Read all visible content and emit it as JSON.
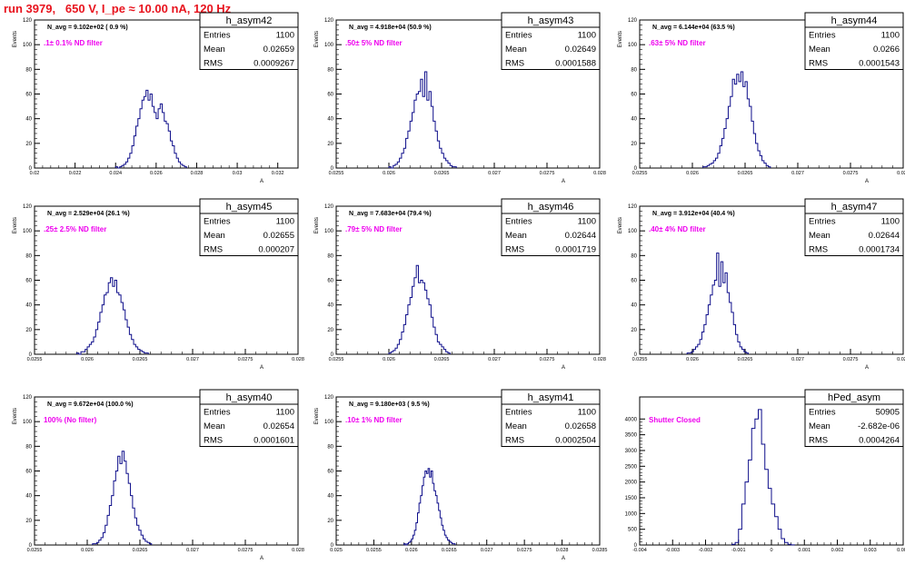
{
  "header": {
    "run_title": "run 3979,   650 V, I_pe ≈ 10.00 nA, 120 Hz"
  },
  "colors": {
    "title": "#e8141e",
    "hist": "#0d0d8a",
    "annotation": "#ee00ee",
    "axis": "#000000"
  },
  "chart_data": [
    {
      "type": "bar",
      "name": "h_asym42",
      "stats": {
        "Entries": "1100",
        "Mean": "0.02659",
        "RMS": "0.0009267"
      },
      "n_avg": "N_avg = 9.102e+02 ( 0.9 %)",
      "annotation": ".1± 0.1% ND filter",
      "ylabel": "Events",
      "xlabel": "A",
      "xlim": [
        0.02,
        0.033
      ],
      "ylim": [
        0,
        120
      ],
      "xticks": [
        0.02,
        0.022,
        0.024,
        0.026,
        0.028,
        0.03,
        0.032
      ],
      "xtick_labels": [
        "0.02",
        "0.022",
        "0.024",
        "0.026",
        "0.028",
        "0.03",
        "0.032"
      ],
      "yticks": [
        0,
        20,
        40,
        60,
        80,
        100,
        120
      ],
      "ytick_labels": [
        "0",
        "20",
        "40",
        "60",
        "80",
        "100",
        "120"
      ],
      "bins_start": 0.024,
      "bin_width": 0.0001,
      "values": [
        1,
        0,
        1,
        2,
        3,
        5,
        8,
        12,
        18,
        26,
        34,
        40,
        48,
        55,
        58,
        63,
        55,
        60,
        50,
        45,
        40,
        48,
        52,
        45,
        38,
        36,
        30,
        22,
        18,
        12,
        8,
        5,
        3,
        2,
        1
      ]
    },
    {
      "type": "bar",
      "name": "h_asym43",
      "stats": {
        "Entries": "1100",
        "Mean": "0.02649",
        "RMS": "0.0001588"
      },
      "n_avg": "N_avg = 4.918e+04 (50.9 %)",
      "annotation": ".50± 5% ND filter",
      "ylabel": "Events",
      "xlabel": "A",
      "xlim": [
        0.0255,
        0.028
      ],
      "ylim": [
        0,
        120
      ],
      "xticks": [
        0.0255,
        0.026,
        0.0265,
        0.027,
        0.0275,
        0.028
      ],
      "xtick_labels": [
        "0.0255",
        "0.026",
        "0.0265",
        "0.027",
        "0.0275",
        "0.028"
      ],
      "yticks": [
        0,
        20,
        40,
        60,
        80,
        100,
        120
      ],
      "ytick_labels": [
        "0",
        "20",
        "40",
        "60",
        "80",
        "100",
        "120"
      ],
      "bins_start": 0.026,
      "bin_width": 2e-05,
      "values": [
        1,
        0,
        2,
        3,
        5,
        8,
        12,
        16,
        24,
        30,
        38,
        45,
        55,
        60,
        62,
        72,
        58,
        78,
        55,
        62,
        50,
        38,
        30,
        22,
        16,
        12,
        8,
        6,
        4,
        2,
        1,
        1
      ]
    },
    {
      "type": "bar",
      "name": "h_asym44",
      "stats": {
        "Entries": "1100",
        "Mean": "0.0266",
        "RMS": "0.0001543"
      },
      "n_avg": "N_avg = 6.144e+04 (63.5 %)",
      "annotation": ".63± 5% ND filter",
      "ylabel": "Events",
      "xlabel": "A",
      "xlim": [
        0.0255,
        0.028
      ],
      "ylim": [
        0,
        120
      ],
      "xticks": [
        0.0255,
        0.026,
        0.0265,
        0.027,
        0.0275,
        0.028
      ],
      "xtick_labels": [
        "0.0255",
        "0.026",
        "0.0265",
        "0.027",
        "0.0275",
        "0.028"
      ],
      "yticks": [
        0,
        20,
        40,
        60,
        80,
        100,
        120
      ],
      "ytick_labels": [
        "0",
        "20",
        "40",
        "60",
        "80",
        "100",
        "120"
      ],
      "bins_start": 0.0261,
      "bin_width": 2e-05,
      "values": [
        1,
        1,
        2,
        3,
        4,
        6,
        8,
        12,
        18,
        24,
        32,
        40,
        50,
        58,
        72,
        68,
        76,
        70,
        78,
        66,
        70,
        56,
        50,
        38,
        28,
        20,
        14,
        10,
        6,
        4,
        2,
        1
      ]
    },
    {
      "type": "bar",
      "name": "h_asym45",
      "stats": {
        "Entries": "1100",
        "Mean": "0.02655",
        "RMS": "0.000207"
      },
      "n_avg": "N_avg = 2.529e+04 (26.1 %)",
      "annotation": ".25± 2.5% ND filter",
      "ylabel": "Events",
      "xlabel": "A",
      "xlim": [
        0.0255,
        0.028
      ],
      "ylim": [
        0,
        120
      ],
      "xticks": [
        0.0255,
        0.026,
        0.0265,
        0.027,
        0.0275,
        0.028
      ],
      "xtick_labels": [
        "0.0255",
        "0.026",
        "0.0265",
        "0.027",
        "0.0275",
        "0.028"
      ],
      "yticks": [
        0,
        20,
        40,
        60,
        80,
        100,
        120
      ],
      "ytick_labels": [
        "0",
        "20",
        "40",
        "60",
        "80",
        "100",
        "120"
      ],
      "bins_start": 0.0259,
      "bin_width": 2e-05,
      "values": [
        1,
        0,
        2,
        2,
        4,
        6,
        8,
        10,
        14,
        20,
        26,
        34,
        40,
        48,
        50,
        58,
        62,
        55,
        60,
        50,
        48,
        42,
        36,
        28,
        22,
        16,
        12,
        8,
        6,
        4,
        3,
        2,
        1,
        1
      ]
    },
    {
      "type": "bar",
      "name": "h_asym46",
      "stats": {
        "Entries": "1100",
        "Mean": "0.02644",
        "RMS": "0.0001719"
      },
      "n_avg": "N_avg = 7.683e+04 (79.4 %)",
      "annotation": ".79± 5% ND filter",
      "ylabel": "Events",
      "xlabel": "A",
      "xlim": [
        0.0255,
        0.028
      ],
      "ylim": [
        0,
        120
      ],
      "xticks": [
        0.0255,
        0.026,
        0.0265,
        0.027,
        0.0275,
        0.028
      ],
      "xtick_labels": [
        "0.0255",
        "0.026",
        "0.0265",
        "0.027",
        "0.0275",
        "0.028"
      ],
      "yticks": [
        0,
        20,
        40,
        60,
        80,
        100,
        120
      ],
      "ytick_labels": [
        "0",
        "20",
        "40",
        "60",
        "80",
        "100",
        "120"
      ],
      "bins_start": 0.026,
      "bin_width": 2e-05,
      "values": [
        1,
        2,
        3,
        5,
        8,
        12,
        18,
        24,
        32,
        40,
        46,
        55,
        62,
        72,
        58,
        60,
        58,
        52,
        45,
        40,
        30,
        22,
        16,
        10,
        8,
        6,
        4,
        2,
        1
      ]
    },
    {
      "type": "bar",
      "name": "h_asym47",
      "stats": {
        "Entries": "1100",
        "Mean": "0.02644",
        "RMS": "0.0001734"
      },
      "n_avg": "N_avg = 3.912e+04 (40.4 %)",
      "annotation": ".40± 4% ND filter",
      "ylabel": "Events",
      "xlabel": "A",
      "xlim": [
        0.0255,
        0.028
      ],
      "ylim": [
        0,
        120
      ],
      "xticks": [
        0.0255,
        0.026,
        0.0265,
        0.027,
        0.0275,
        0.028
      ],
      "xtick_labels": [
        "0.0255",
        "0.026",
        "0.0265",
        "0.027",
        "0.0275",
        "0.028"
      ],
      "yticks": [
        0,
        20,
        40,
        60,
        80,
        100,
        120
      ],
      "ytick_labels": [
        "0",
        "20",
        "40",
        "60",
        "80",
        "100",
        "120"
      ],
      "bins_start": 0.02595,
      "bin_width": 2e-05,
      "values": [
        1,
        1,
        2,
        4,
        6,
        8,
        12,
        18,
        24,
        32,
        40,
        48,
        56,
        60,
        82,
        55,
        75,
        58,
        66,
        50,
        42,
        34,
        24,
        16,
        10,
        6,
        4,
        2,
        1
      ]
    },
    {
      "type": "bar",
      "name": "h_asym40",
      "stats": {
        "Entries": "1100",
        "Mean": "0.02654",
        "RMS": "0.0001601"
      },
      "n_avg": "N_avg = 9.672e+04 (100.0 %)",
      "annotation": "100% (No filter)",
      "ylabel": "Events",
      "xlabel": "A",
      "xlim": [
        0.0255,
        0.028
      ],
      "ylim": [
        0,
        120
      ],
      "xticks": [
        0.0255,
        0.026,
        0.0265,
        0.027,
        0.0275,
        0.028
      ],
      "xtick_labels": [
        "0.0255",
        "0.026",
        "0.0265",
        "0.027",
        "0.0275",
        "0.028"
      ],
      "yticks": [
        0,
        20,
        40,
        60,
        80,
        100,
        120
      ],
      "ytick_labels": [
        "0",
        "20",
        "40",
        "60",
        "80",
        "100",
        "120"
      ],
      "bins_start": 0.02605,
      "bin_width": 2e-05,
      "values": [
        1,
        1,
        2,
        4,
        6,
        10,
        16,
        24,
        32,
        40,
        52,
        60,
        72,
        66,
        76,
        68,
        58,
        50,
        40,
        30,
        22,
        16,
        12,
        8,
        5,
        3,
        2,
        1
      ]
    },
    {
      "type": "bar",
      "name": "h_asym41",
      "stats": {
        "Entries": "1100",
        "Mean": "0.02658",
        "RMS": "0.0002504"
      },
      "n_avg": "N_avg = 9.180e+03 ( 9.5 %)",
      "annotation": ".10± 1% ND filter",
      "ylabel": "Events",
      "xlabel": "A",
      "xlim": [
        0.025,
        0.0285
      ],
      "ylim": [
        0,
        120
      ],
      "xticks": [
        0.025,
        0.0255,
        0.026,
        0.0265,
        0.027,
        0.0275,
        0.028,
        0.0285
      ],
      "xtick_labels": [
        "0.025",
        "0.0255",
        "0.026",
        "0.0265",
        "0.027",
        "0.0275",
        "0.028",
        "0.0285"
      ],
      "yticks": [
        0,
        20,
        40,
        60,
        80,
        100,
        120
      ],
      "ytick_labels": [
        "0",
        "20",
        "40",
        "60",
        "80",
        "100",
        "120"
      ],
      "bins_start": 0.0259,
      "bin_width": 2e-05,
      "values": [
        1,
        0,
        1,
        2,
        3,
        5,
        8,
        12,
        18,
        26,
        34,
        40,
        48,
        55,
        60,
        58,
        62,
        55,
        60,
        50,
        44,
        40,
        34,
        28,
        22,
        16,
        12,
        8,
        6,
        4,
        3,
        2,
        1,
        1
      ]
    },
    {
      "type": "bar",
      "name": "hPed_asym",
      "stats": {
        "Entries": "50905",
        "Mean": "-2.682e-06",
        "RMS": "0.0004264"
      },
      "n_avg": "",
      "annotation": "Shutter Closed",
      "ylabel": "",
      "xlabel": "",
      "xlim": [
        -0.004,
        0.004
      ],
      "ylim": [
        0,
        4700
      ],
      "xticks": [
        -0.004,
        -0.003,
        -0.002,
        -0.001,
        0,
        0.001,
        0.002,
        0.003,
        0.004
      ],
      "xtick_labels": [
        "-0.004",
        "-0.003",
        "-0.002",
        "-0.001",
        "0",
        "0.001",
        "0.002",
        "0.003",
        "0.004"
      ],
      "yticks": [
        0,
        500,
        1000,
        1500,
        2000,
        2500,
        3000,
        3500,
        4000
      ],
      "ytick_labels": [
        "0",
        "500",
        "1000",
        "1500",
        "2000",
        "2500",
        "3000",
        "3500",
        "4000"
      ],
      "bins_start": -0.0012,
      "bin_width": 0.0001,
      "values": [
        20,
        80,
        500,
        1300,
        2000,
        2700,
        3700,
        4000,
        4300,
        3200,
        2400,
        1800,
        1300,
        900,
        500,
        200,
        80,
        20,
        5
      ]
    }
  ]
}
